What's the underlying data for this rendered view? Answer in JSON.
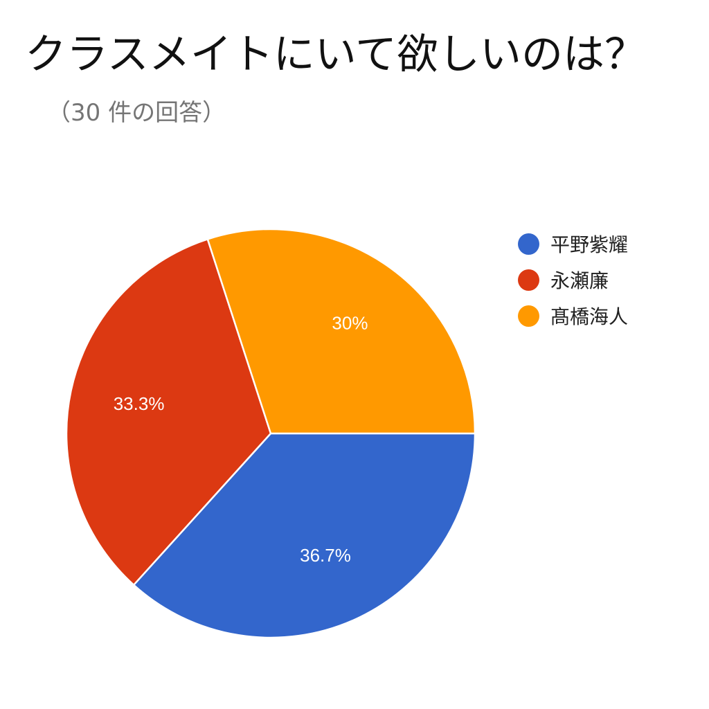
{
  "chart_data": {
    "type": "pie",
    "title": "クラスメイトにいて欲しいのは？",
    "subtitle": "（30 件の回答）",
    "legend_position": "right",
    "slices": [
      {
        "name": "平野紫耀",
        "value": 36.7,
        "label": "36.7%",
        "color": "#3366cc"
      },
      {
        "name": "永瀬廉",
        "value": 33.3,
        "label": "33.3%",
        "color": "#dc3912"
      },
      {
        "name": "髙橋海人",
        "value": 30.0,
        "label": "30%",
        "color": "#ff9900"
      }
    ]
  }
}
